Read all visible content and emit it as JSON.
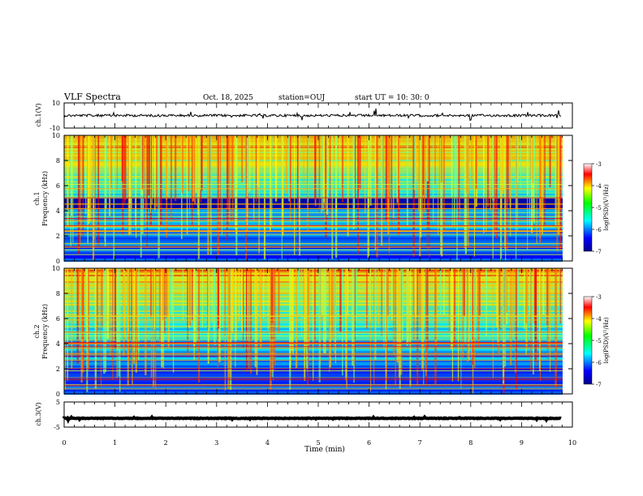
{
  "header": {
    "title": "VLF Spectra",
    "date": "Oct. 18, 2025",
    "station": "station=OUJ",
    "start": "start  UT =   10: 30: 0"
  },
  "chart_data": [
    {
      "type": "line",
      "name": "waveform-ch1",
      "ylabel": "ch.1(V)",
      "ylim": [
        -10,
        10
      ],
      "ytick_labels": [
        "-10",
        "10"
      ],
      "xlim": [
        0,
        10
      ],
      "level": 0
    },
    {
      "type": "heatmap",
      "name": "spectrogram-ch1",
      "ylabel_line1": "ch.1",
      "ylabel_line2": "Frequency (kHz)",
      "ylim": [
        0,
        10
      ],
      "ytick_labels": [
        "0",
        "2",
        "4",
        "6",
        "8",
        "10"
      ],
      "xlim": [
        0,
        10
      ],
      "colorbar": {
        "label": "log(PSD)(V²/Hz)",
        "range": [
          -7,
          -3
        ],
        "tick_labels": [
          "-3",
          "-4",
          "-5",
          "-6",
          "-7"
        ]
      }
    },
    {
      "type": "heatmap",
      "name": "spectrogram-ch2",
      "ylabel_line1": "ch.2",
      "ylabel_line2": "Frequency (kHz)",
      "ylim": [
        0,
        10
      ],
      "ytick_labels": [
        "0",
        "2",
        "4",
        "6",
        "8",
        "10"
      ],
      "xlim": [
        0,
        10
      ],
      "colorbar": {
        "label": "log(PSD)(V²/Hz)",
        "range": [
          -7,
          -3
        ],
        "tick_labels": [
          "-3",
          "-4",
          "-5",
          "-6",
          "-7"
        ]
      }
    },
    {
      "type": "line",
      "name": "waveform-ch3",
      "ylabel": "ch.3(V)",
      "ylim": [
        -5,
        5
      ],
      "ytick_labels": [
        "-5",
        "5"
      ],
      "xlim": [
        0,
        10
      ],
      "level": -1.5
    }
  ],
  "xaxis": {
    "label": "Time (min)",
    "tick_labels": [
      "0",
      "1",
      "2",
      "3",
      "4",
      "5",
      "6",
      "7",
      "8",
      "9",
      "10"
    ]
  }
}
